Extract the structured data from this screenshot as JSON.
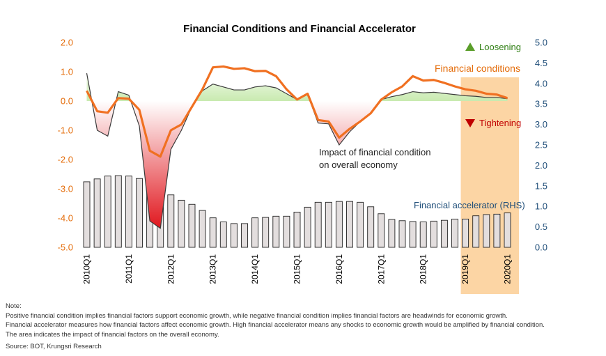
{
  "chart_data": {
    "type": "line+bar+area",
    "title": "Financial Conditions and Financial Accelerator",
    "y_left": {
      "ylim": [
        -5.0,
        2.0
      ],
      "ticks": [
        "2.0",
        "1.0",
        "0.0",
        "-1.0",
        "-2.0",
        "-3.0",
        "-4.0",
        "-5.0"
      ]
    },
    "y_right": {
      "ylim": [
        0.0,
        5.0
      ],
      "ticks": [
        "5.0",
        "4.5",
        "4.0",
        "3.5",
        "3.0",
        "2.5",
        "2.0",
        "1.5",
        "1.0",
        "0.5",
        "0.0"
      ]
    },
    "x_tick_labels": [
      {
        "label": "2010Q1",
        "index": 0
      },
      {
        "label": "2011Q1",
        "index": 4
      },
      {
        "label": "2012Q1",
        "index": 8
      },
      {
        "label": "2013Q1",
        "index": 12
      },
      {
        "label": "2014Q1",
        "index": 16
      },
      {
        "label": "2015Q1",
        "index": 20
      },
      {
        "label": "2016Q1",
        "index": 24
      },
      {
        "label": "2017Q1",
        "index": 28
      },
      {
        "label": "2018Q1",
        "index": 32
      },
      {
        "label": "2019Q1",
        "index": 36
      },
      {
        "label": "2020Q1",
        "index": 40
      }
    ],
    "quarters": 41,
    "series": [
      {
        "name": "Financial conditions",
        "axis": "left",
        "values": [
          0.35,
          -0.35,
          -0.4,
          0.1,
          0.08,
          -0.3,
          -1.7,
          -1.9,
          -1.0,
          -0.8,
          -0.2,
          0.4,
          1.15,
          1.18,
          1.1,
          1.12,
          1.02,
          1.03,
          0.85,
          0.4,
          0.05,
          0.25,
          -0.65,
          -0.7,
          -1.25,
          -0.95,
          -0.7,
          -0.42,
          0.05,
          0.3,
          0.5,
          0.85,
          0.7,
          0.72,
          0.62,
          0.5,
          0.4,
          0.35,
          0.25,
          0.22,
          0.1
        ]
      },
      {
        "name": "Impact of financial condition on overall economy",
        "axis": "left",
        "values": [
          0.95,
          -1.0,
          -1.2,
          0.32,
          0.2,
          -0.85,
          -4.1,
          -4.35,
          -1.65,
          -1.0,
          -0.2,
          0.35,
          0.58,
          0.48,
          0.38,
          0.38,
          0.48,
          0.52,
          0.45,
          0.25,
          0.05,
          0.22,
          -0.75,
          -0.78,
          -1.5,
          -1.05,
          -0.7,
          -0.42,
          0.05,
          0.15,
          0.22,
          0.32,
          0.28,
          0.3,
          0.26,
          0.22,
          0.18,
          0.16,
          0.12,
          0.12,
          0.08
        ]
      },
      {
        "name": "Financial accelerator (RHS)",
        "axis": "right",
        "type": "bar",
        "values": [
          1.6,
          1.67,
          1.74,
          1.75,
          1.74,
          1.68,
          1.6,
          1.52,
          1.28,
          1.15,
          1.05,
          0.9,
          0.72,
          0.62,
          0.58,
          0.58,
          0.72,
          0.73,
          0.76,
          0.76,
          0.86,
          0.98,
          1.1,
          1.1,
          1.12,
          1.12,
          1.1,
          0.99,
          0.82,
          0.68,
          0.65,
          0.63,
          0.62,
          0.64,
          0.66,
          0.69,
          0.69,
          0.77,
          0.8,
          0.81,
          0.84
        ]
      }
    ],
    "colors": {
      "financial_conditions": "#f07021",
      "impact_line": "#3a3a3a",
      "positive_fill": "#d9f0c4",
      "negative_fill": "#e8262a",
      "bar_fill": "#e3dede",
      "bar_stroke": "#222222",
      "highlight": "#fcd5a4",
      "left_axis": "#e46c0a",
      "right_axis": "#1f4e79",
      "loosening": "#2e7d12",
      "tightening": "#c00000"
    },
    "highlight_range": {
      "from_index": 36,
      "to_index": 40
    },
    "annotations": {
      "loosening": "Loosening",
      "tightening": "Tightening",
      "fin_conditions": "Financial conditions",
      "impact_line1": "Impact of financial condition",
      "impact_line2": "on overall economy",
      "accelerator": "Financial accelerator (RHS)"
    }
  },
  "notes": {
    "heading": "Note:",
    "line1": "Positive financial condition implies financial factors support economic growth, while negative financial condition implies financial factors are headwinds for economic growth.",
    "line2": "Financial accelerator measures how financial factors affect economic growth. High financial accelerator means any shocks to economic growth would be amplified by financial condition.",
    "line3": "The area indicates the impact of financial factors on the overall economy."
  },
  "source": "Source: BOT, Krungsri Research"
}
